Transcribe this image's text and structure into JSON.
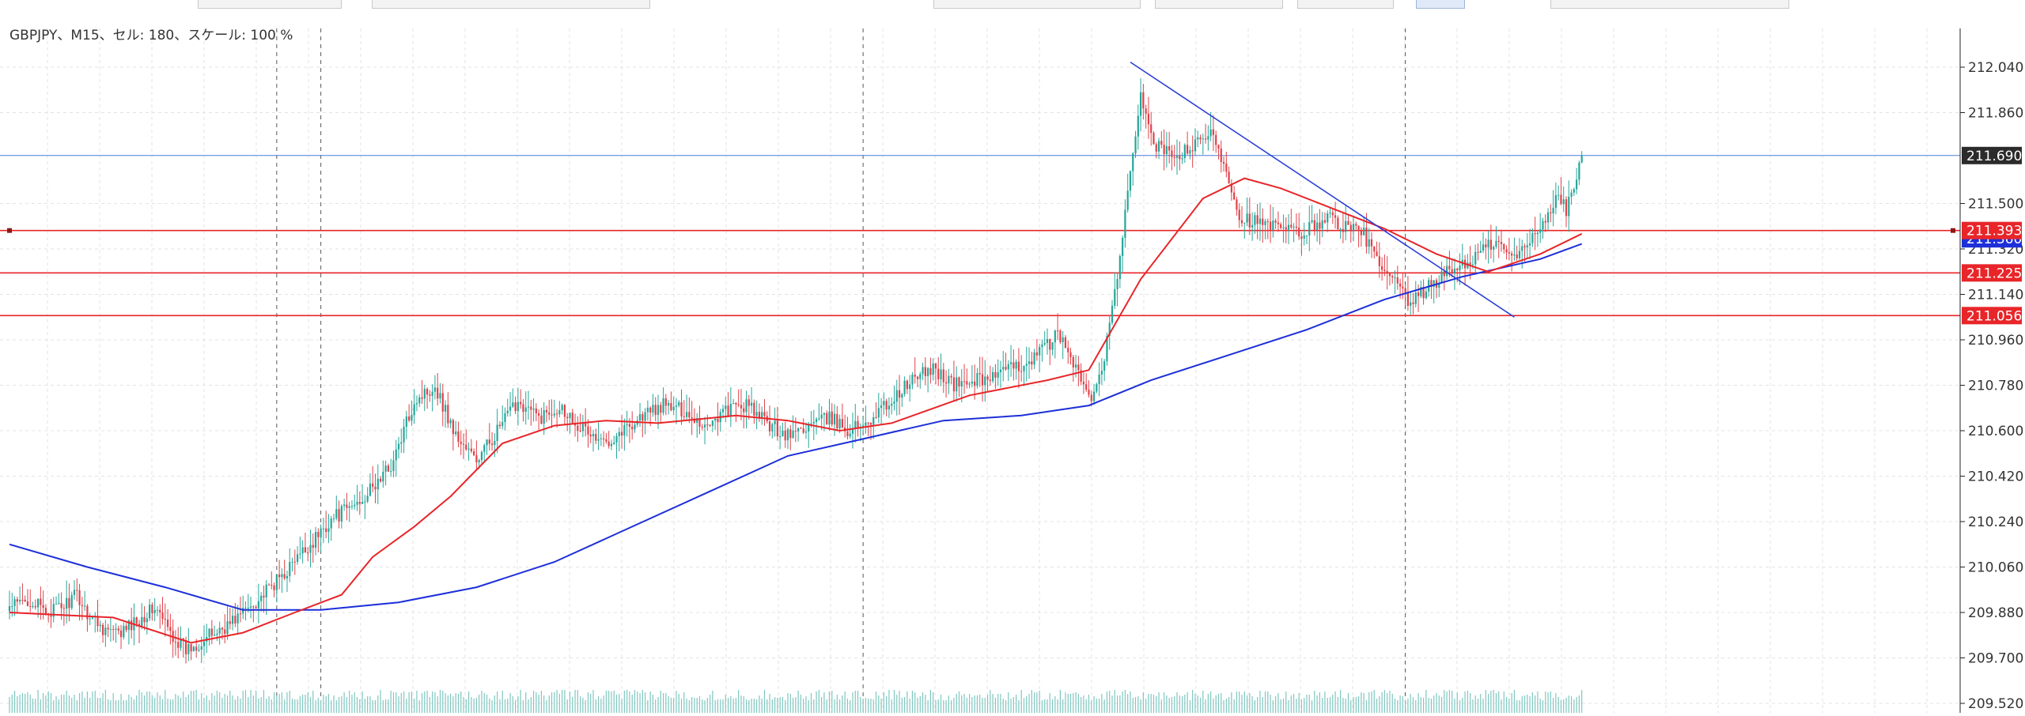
{
  "header": {
    "chart_info": "GBPJPY、M15、セル: 180、スケール: 100 %"
  },
  "colors": {
    "bull": "#26a69a",
    "bear": "#e0424a",
    "ma_fast": "#e8262a",
    "ma_slow": "#1c2fd8",
    "trendline": "#2b3fd6",
    "hline": "#e8262a",
    "price_line": "#4a7fd8",
    "grid": "#e3e3e3",
    "volume": "#7fc7c0",
    "text": "#333333"
  },
  "chart_data": {
    "type": "line",
    "symbol": "GBPJPY",
    "timeframe": "M15",
    "ylim": [
      209.52,
      212.09
    ],
    "y_ticks": [
      "212.040",
      "211.860",
      "211.500",
      "211.320",
      "211.140",
      "210.960",
      "210.780",
      "210.600",
      "210.420",
      "210.240",
      "210.060",
      "209.880",
      "209.700",
      "209.520"
    ],
    "current_price": "211.690",
    "horizontal_levels": [
      {
        "value": 211.393,
        "label": "211.393"
      },
      {
        "value": 211.225,
        "label": "211.225"
      },
      {
        "value": 211.056,
        "label": "211.056"
      }
    ],
    "hidden_label_value": "211.360",
    "anchors": [
      [
        0,
        209.9
      ],
      [
        8,
        209.93
      ],
      [
        14,
        209.88
      ],
      [
        20,
        209.9
      ],
      [
        26,
        209.95
      ],
      [
        30,
        209.88
      ],
      [
        36,
        209.82
      ],
      [
        42,
        209.79
      ],
      [
        48,
        209.84
      ],
      [
        56,
        209.9
      ],
      [
        62,
        209.8
      ],
      [
        68,
        209.73
      ],
      [
        76,
        209.78
      ],
      [
        84,
        209.83
      ],
      [
        92,
        209.9
      ],
      [
        100,
        209.97
      ],
      [
        108,
        210.06
      ],
      [
        116,
        210.15
      ],
      [
        124,
        210.25
      ],
      [
        132,
        210.3
      ],
      [
        140,
        210.37
      ],
      [
        148,
        210.48
      ],
      [
        156,
        210.72
      ],
      [
        164,
        210.78
      ],
      [
        172,
        210.58
      ],
      [
        180,
        210.48
      ],
      [
        188,
        210.6
      ],
      [
        196,
        210.72
      ],
      [
        204,
        210.65
      ],
      [
        212,
        210.7
      ],
      [
        220,
        210.62
      ],
      [
        228,
        210.55
      ],
      [
        236,
        210.6
      ],
      [
        244,
        210.66
      ],
      [
        252,
        210.7
      ],
      [
        260,
        210.68
      ],
      [
        268,
        210.62
      ],
      [
        276,
        210.68
      ],
      [
        284,
        210.7
      ],
      [
        292,
        210.63
      ],
      [
        300,
        210.58
      ],
      [
        308,
        210.62
      ],
      [
        316,
        210.65
      ],
      [
        324,
        210.6
      ],
      [
        332,
        210.65
      ],
      [
        340,
        210.72
      ],
      [
        348,
        210.8
      ],
      [
        356,
        210.85
      ],
      [
        364,
        210.78
      ],
      [
        372,
        210.8
      ],
      [
        380,
        210.82
      ],
      [
        388,
        210.85
      ],
      [
        396,
        210.9
      ],
      [
        404,
        210.98
      ],
      [
        410,
        210.88
      ],
      [
        416,
        210.72
      ],
      [
        420,
        210.8
      ],
      [
        424,
        211.0
      ],
      [
        428,
        211.3
      ],
      [
        432,
        211.6
      ],
      [
        436,
        211.95
      ],
      [
        440,
        211.75
      ],
      [
        448,
        211.68
      ],
      [
        456,
        211.72
      ],
      [
        464,
        211.78
      ],
      [
        470,
        211.6
      ],
      [
        474,
        211.45
      ],
      [
        482,
        211.42
      ],
      [
        490,
        211.4
      ],
      [
        498,
        211.38
      ],
      [
        508,
        211.45
      ],
      [
        516,
        211.4
      ],
      [
        522,
        211.38
      ],
      [
        528,
        211.25
      ],
      [
        534,
        211.18
      ],
      [
        540,
        211.1
      ],
      [
        548,
        211.18
      ],
      [
        556,
        211.24
      ],
      [
        564,
        211.28
      ],
      [
        572,
        211.35
      ],
      [
        580,
        211.28
      ],
      [
        588,
        211.38
      ],
      [
        592,
        211.45
      ],
      [
        596,
        211.52
      ],
      [
        600,
        211.48
      ],
      [
        604,
        211.6
      ],
      [
        606,
        211.69
      ]
    ],
    "ma_fast": [
      [
        0,
        209.88
      ],
      [
        40,
        209.86
      ],
      [
        70,
        209.76
      ],
      [
        90,
        209.8
      ],
      [
        110,
        209.88
      ],
      [
        128,
        209.95
      ],
      [
        140,
        210.1
      ],
      [
        156,
        210.22
      ],
      [
        170,
        210.34
      ],
      [
        190,
        210.55
      ],
      [
        210,
        210.62
      ],
      [
        230,
        210.64
      ],
      [
        250,
        210.63
      ],
      [
        280,
        210.66
      ],
      [
        300,
        210.64
      ],
      [
        320,
        210.6
      ],
      [
        340,
        210.63
      ],
      [
        370,
        210.74
      ],
      [
        400,
        210.8
      ],
      [
        416,
        210.84
      ],
      [
        436,
        211.2
      ],
      [
        460,
        211.52
      ],
      [
        476,
        211.6
      ],
      [
        490,
        211.56
      ],
      [
        510,
        211.48
      ],
      [
        530,
        211.4
      ],
      [
        550,
        211.3
      ],
      [
        570,
        211.23
      ],
      [
        590,
        211.3
      ],
      [
        606,
        211.38
      ]
    ],
    "ma_slow": [
      [
        0,
        210.15
      ],
      [
        30,
        210.06
      ],
      [
        60,
        209.98
      ],
      [
        90,
        209.89
      ],
      [
        120,
        209.89
      ],
      [
        150,
        209.92
      ],
      [
        180,
        209.98
      ],
      [
        210,
        210.08
      ],
      [
        240,
        210.22
      ],
      [
        270,
        210.36
      ],
      [
        300,
        210.5
      ],
      [
        330,
        210.57
      ],
      [
        360,
        210.64
      ],
      [
        390,
        210.66
      ],
      [
        416,
        210.7
      ],
      [
        440,
        210.8
      ],
      [
        470,
        210.9
      ],
      [
        500,
        211.0
      ],
      [
        530,
        211.12
      ],
      [
        560,
        211.21
      ],
      [
        590,
        211.28
      ],
      [
        606,
        211.34
      ]
    ],
    "trendline": {
      "from": [
        432,
        212.06
      ],
      "to": [
        580,
        211.05
      ]
    },
    "vertical_separators": [
      103,
      120,
      329,
      538
    ]
  }
}
